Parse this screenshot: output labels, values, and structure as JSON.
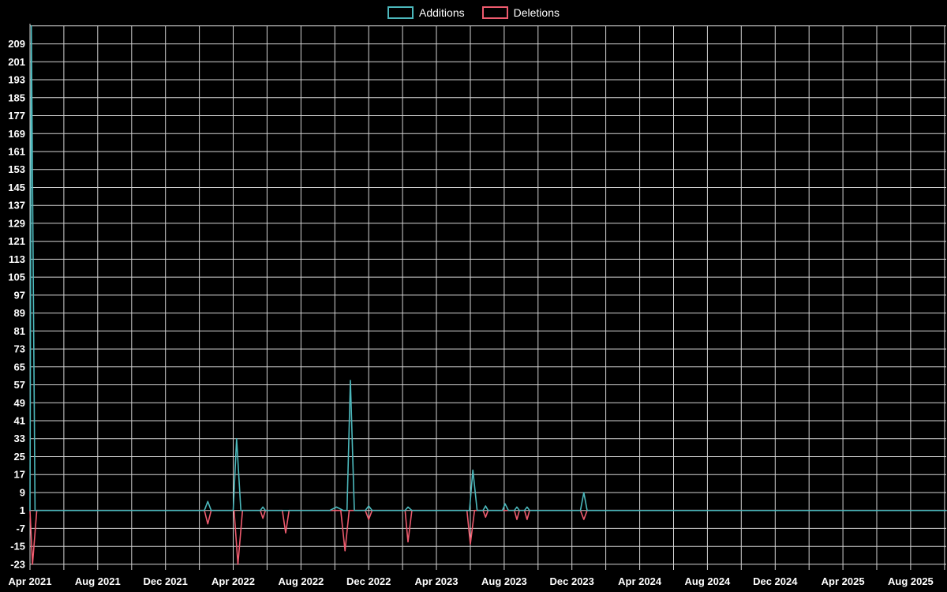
{
  "chart_data": {
    "type": "line",
    "title": "",
    "legend": [
      {
        "label": "Additions",
        "color": "#4cb8bc"
      },
      {
        "label": "Deletions",
        "color": "#ee5b6e"
      }
    ],
    "colors": {
      "background": "#000000",
      "grid": "#d4d4d4",
      "text": "#ffffff"
    },
    "x_axis": {
      "span_months": 54.1,
      "grid_step_months": 2,
      "tick_positions_months": [
        0,
        4,
        8,
        12,
        16,
        20,
        24,
        28,
        32,
        36,
        40,
        44,
        48,
        52
      ],
      "tick_labels": [
        "Apr 2021",
        "Aug 2021",
        "Dec 2021",
        "Apr 2022",
        "Aug 2022",
        "Dec 2022",
        "Apr 2023",
        "Aug 2023",
        "Dec 2023",
        "Apr 2024",
        "Aug 2024",
        "Dec 2024",
        "Apr 2025",
        "Aug 2025"
      ]
    },
    "y_axis": {
      "ticks": [
        209,
        201,
        193,
        185,
        177,
        169,
        161,
        153,
        145,
        137,
        129,
        121,
        113,
        105,
        97,
        89,
        81,
        73,
        65,
        57,
        49,
        41,
        33,
        25,
        17,
        9,
        1,
        -7,
        -15,
        -23
      ],
      "grid_top_value": 217,
      "min": -25.5,
      "max": 218
    },
    "series": [
      {
        "name": "Additions",
        "color": "#4cb8bc",
        "baseline": 1,
        "points": [
          [
            0,
            1
          ],
          [
            0.08,
            217
          ],
          [
            0.3,
            1
          ],
          [
            10.3,
            1
          ],
          [
            10.5,
            5
          ],
          [
            10.7,
            1
          ],
          [
            12.0,
            1
          ],
          [
            12.2,
            33
          ],
          [
            12.45,
            1
          ],
          [
            13.6,
            1
          ],
          [
            13.75,
            2.5
          ],
          [
            13.9,
            1
          ],
          [
            17.7,
            1
          ],
          [
            18.1,
            2.5
          ],
          [
            18.5,
            1
          ],
          [
            18.72,
            1
          ],
          [
            18.92,
            59
          ],
          [
            19.15,
            1
          ],
          [
            19.8,
            1
          ],
          [
            20.0,
            3
          ],
          [
            20.2,
            1
          ],
          [
            22.15,
            1
          ],
          [
            22.32,
            2.5
          ],
          [
            22.55,
            1
          ],
          [
            25.95,
            1
          ],
          [
            26.15,
            19
          ],
          [
            26.4,
            1
          ],
          [
            26.75,
            1
          ],
          [
            26.9,
            3
          ],
          [
            27.05,
            1
          ],
          [
            27.9,
            1
          ],
          [
            28.05,
            4
          ],
          [
            28.25,
            1
          ],
          [
            28.6,
            1
          ],
          [
            28.75,
            2.5
          ],
          [
            28.9,
            1
          ],
          [
            29.2,
            1
          ],
          [
            29.35,
            2.5
          ],
          [
            29.5,
            1
          ],
          [
            32.5,
            1
          ],
          [
            32.7,
            9
          ],
          [
            32.9,
            1
          ],
          [
            54.1,
            1
          ]
        ]
      },
      {
        "name": "Deletions",
        "color": "#ee5b6e",
        "baseline": 1,
        "points": [
          [
            0,
            1
          ],
          [
            0.15,
            -23
          ],
          [
            0.4,
            1
          ],
          [
            10.3,
            1
          ],
          [
            10.5,
            -5
          ],
          [
            10.7,
            1
          ],
          [
            12.05,
            1
          ],
          [
            12.28,
            -23
          ],
          [
            12.55,
            1
          ],
          [
            13.6,
            1
          ],
          [
            13.75,
            -2.5
          ],
          [
            13.9,
            1
          ],
          [
            14.9,
            1
          ],
          [
            15.1,
            -9
          ],
          [
            15.3,
            1
          ],
          [
            18.35,
            1
          ],
          [
            18.6,
            -17
          ],
          [
            18.85,
            1
          ],
          [
            19.8,
            1
          ],
          [
            20.0,
            -3
          ],
          [
            20.2,
            1
          ],
          [
            22.15,
            1
          ],
          [
            22.32,
            -13
          ],
          [
            22.55,
            1
          ],
          [
            25.8,
            1
          ],
          [
            26.0,
            -14
          ],
          [
            26.25,
            1
          ],
          [
            26.75,
            1
          ],
          [
            26.9,
            -2
          ],
          [
            27.05,
            1
          ],
          [
            28.6,
            1
          ],
          [
            28.75,
            -3
          ],
          [
            28.9,
            1
          ],
          [
            29.2,
            1
          ],
          [
            29.35,
            -3
          ],
          [
            29.5,
            1
          ],
          [
            32.5,
            1
          ],
          [
            32.7,
            -3
          ],
          [
            32.9,
            1
          ],
          [
            54.1,
            1
          ]
        ]
      }
    ]
  }
}
